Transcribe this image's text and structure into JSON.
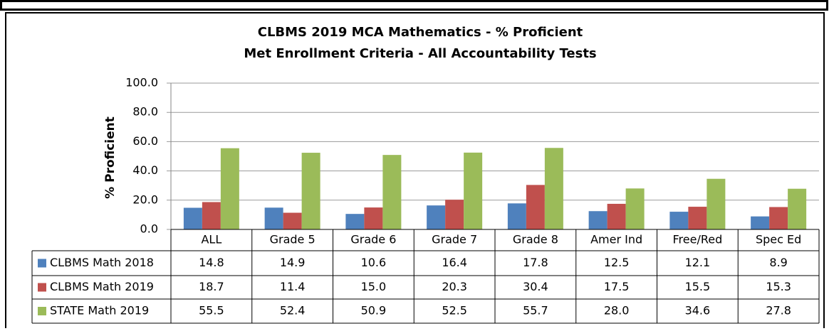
{
  "chart_data": {
    "type": "bar",
    "title": "CLBMS 2019 MCA Mathematics  - % Proficient",
    "subtitle": "Met Enrollment Criteria - All Accountability Tests",
    "y_label": "% Proficient",
    "categories": [
      "ALL",
      "Grade 5",
      "Grade 6",
      "Grade 7",
      "Grade 8",
      "Amer Ind",
      "Free/Red",
      "Spec Ed"
    ],
    "series": [
      {
        "name": "CLBMS Math 2018",
        "color": "#4f81bd",
        "values": [
          14.8,
          14.9,
          10.6,
          16.4,
          17.8,
          12.5,
          12.1,
          8.9
        ],
        "value_labels": [
          "14.8",
          "14.9",
          "10.6",
          "16.4",
          "17.8",
          "12.5",
          "12.1",
          "8.9"
        ]
      },
      {
        "name": "CLBMS Math 2019",
        "color": "#c0504d",
        "values": [
          18.7,
          11.4,
          15,
          20.3,
          30.4,
          17.5,
          15.5,
          15.3
        ],
        "value_labels": [
          "18.7",
          "11.4",
          "15.0",
          "20.3",
          "30.4",
          "17.5",
          "15.5",
          "15.3"
        ]
      },
      {
        "name": "STATE Math 2019",
        "color": "#9bbb59",
        "values": [
          55.5,
          52.4,
          50.9,
          52.5,
          55.7,
          28,
          34.6,
          27.8
        ],
        "value_labels": [
          "55.5",
          "52.4",
          "50.9",
          "52.5",
          "55.7",
          "28.0",
          "34.6",
          "27.8"
        ]
      }
    ],
    "ylim": [
      0,
      100
    ],
    "yticks": [
      {
        "value": 0,
        "label": "0.0"
      },
      {
        "value": 20,
        "label": "20.0"
      },
      {
        "value": 40,
        "label": "40.0"
      },
      {
        "value": 60,
        "label": "60.0"
      },
      {
        "value": 80,
        "label": "80.0"
      },
      {
        "value": 100,
        "label": "100.0"
      }
    ],
    "grid": true
  }
}
